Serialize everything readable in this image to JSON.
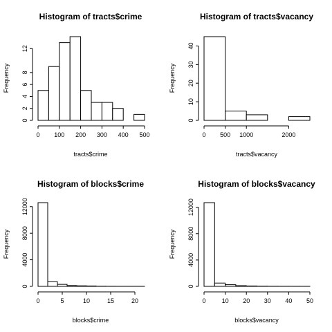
{
  "chart_data": [
    {
      "type": "bar",
      "title": "Histogram of tracts$crime",
      "xlabel": "tracts$crime",
      "ylabel": "Frequency",
      "bin_edges": [
        0,
        50,
        100,
        150,
        200,
        250,
        300,
        350,
        400,
        450,
        500
      ],
      "values": [
        5,
        9,
        13,
        14,
        5,
        3,
        3,
        2,
        0,
        1
      ],
      "xlim": [
        0,
        500
      ],
      "ylim": [
        0,
        14
      ],
      "xticks": [
        0,
        100,
        200,
        300,
        400,
        500
      ],
      "yticks": [
        0,
        2,
        4,
        6,
        8,
        12
      ]
    },
    {
      "type": "bar",
      "title": "Histogram of tracts$vacancy",
      "xlabel": "tracts$vacancy",
      "ylabel": "Frequency",
      "bin_edges": [
        0,
        500,
        1000,
        1500,
        2000,
        2500
      ],
      "values": [
        45,
        5,
        3,
        0,
        2
      ],
      "xlim": [
        0,
        2500
      ],
      "ylim": [
        0,
        45
      ],
      "xticks": [
        0,
        500,
        1000,
        2000
      ],
      "yticks": [
        0,
        10,
        20,
        30,
        40
      ]
    },
    {
      "type": "bar",
      "title": "Histogram of blocks$crime",
      "xlabel": "blocks$crime",
      "ylabel": "Frequency",
      "bin_edges": [
        0,
        2,
        4,
        6,
        8,
        10,
        12,
        14,
        16,
        18,
        20,
        22
      ],
      "values": [
        12600,
        700,
        300,
        120,
        80,
        60,
        20,
        10,
        5,
        5,
        5
      ],
      "xlim": [
        0,
        22
      ],
      "ylim": [
        0,
        12600
      ],
      "xticks": [
        0,
        5,
        10,
        15,
        20
      ],
      "yticks": [
        0,
        4000,
        8000,
        12000
      ]
    },
    {
      "type": "bar",
      "title": "Histogram of blocks$vacancy",
      "xlabel": "blocks$vacancy",
      "ylabel": "Frequency",
      "bin_edges": [
        0,
        5,
        10,
        15,
        20,
        25,
        30,
        35,
        40,
        45,
        50
      ],
      "values": [
        12700,
        500,
        250,
        100,
        60,
        30,
        15,
        10,
        8,
        5
      ],
      "xlim": [
        0,
        50
      ],
      "ylim": [
        0,
        12700
      ],
      "xticks": [
        0,
        10,
        20,
        30,
        40,
        50
      ],
      "yticks": [
        0,
        4000,
        8000,
        12000
      ]
    }
  ]
}
